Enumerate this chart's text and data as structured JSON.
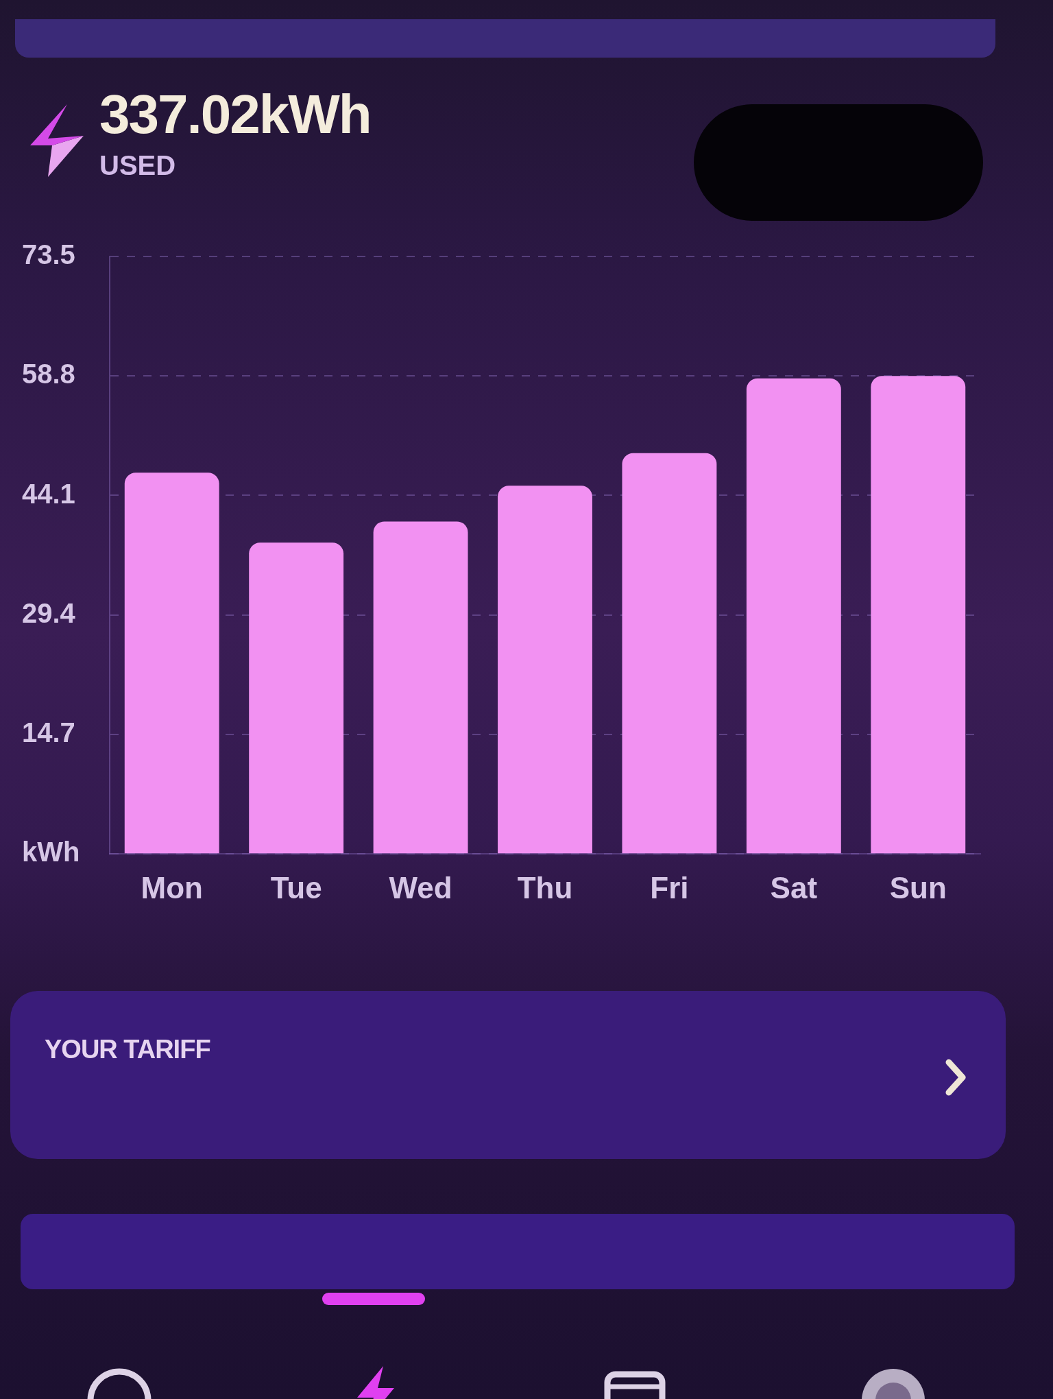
{
  "chart_data": {
    "type": "bar",
    "title": "337.02kWh",
    "subtitle": "USED",
    "categories": [
      "Mon",
      "Tue",
      "Wed",
      "Thu",
      "Fri",
      "Sat",
      "Sun"
    ],
    "values": [
      46.9,
      38.3,
      40.9,
      45.3,
      49.3,
      58.5,
      58.8
    ],
    "color": "#f291f2",
    "ylim": [
      0,
      73.5
    ],
    "yticks": [
      {
        "value": 0,
        "label": "kWh"
      },
      14.7,
      29.4,
      44.1,
      58.8,
      73.5
    ],
    "grid": "y",
    "annotations": [
      "YOUR TARIFF"
    ]
  }
}
